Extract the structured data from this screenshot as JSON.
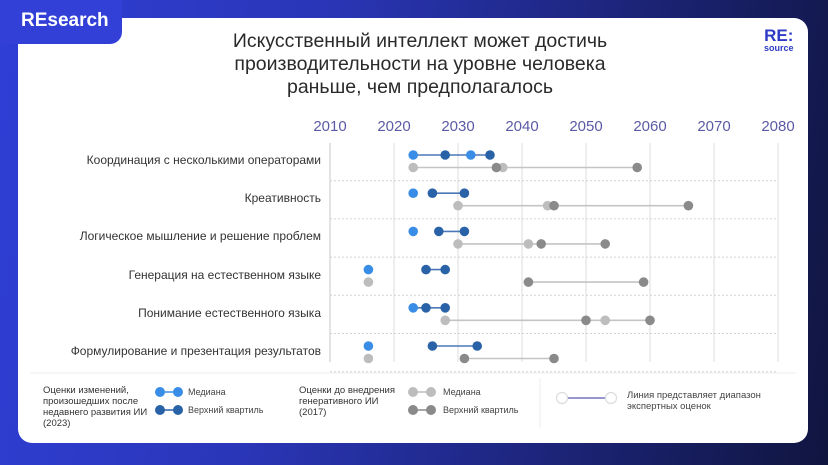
{
  "brand": {
    "tab_label": "REsearch",
    "logo_main": "RE:",
    "logo_sub": "source"
  },
  "title": {
    "line1": "Искусственный интеллект может достичь",
    "line2": "производительности на уровне человека",
    "line3": "раньше, чем предполагалось"
  },
  "colors": {
    "median_2023": "#3a8de6",
    "upper_2023": "#2a62a8",
    "median_2017": "#bdbdbd",
    "upper_2017": "#8a8a8a",
    "range_legend_line": "#5b55b0",
    "axis_labels": "#5b5aa6"
  },
  "legend": {
    "group_2023_label": "Оценки изменений, произошедших после недавнего развития ИИ (2023)",
    "group_2017_label": "Оценки до внедрения генеративного ИИ (2017)",
    "median_label": "Медиана",
    "upper_quartile_label": "Верхний квартиль",
    "median_label_2017": "Медиана",
    "upper_quartile_label_2017": "Верхний квартиль",
    "range_note": "Линия представляет диапазон экспертных оценок"
  },
  "chart_data": {
    "type": "dot-range",
    "title": "Искусственный интеллект может достичь производительности на уровне человека раньше, чем предполагалось",
    "xlabel": "",
    "ylabel": "",
    "xlim": [
      2010,
      2080
    ],
    "x_ticks": [
      "2010",
      "2020",
      "2030",
      "2040",
      "2050",
      "2060",
      "2070",
      "2080"
    ],
    "grid": true,
    "legend_position": "bottom",
    "categories": [
      "Координация с несколькими операторами",
      "Креативность",
      "Логическое мышление  и решение проблем",
      "Генерация на естественном языке",
      "Понимание естественного языка",
      "Формулирование и презентация результатов"
    ],
    "series": [
      {
        "name": "Медиана (2023)",
        "group": "2023",
        "values": [
          [
            2023,
            2032
          ],
          [
            2023
          ],
          [
            2023
          ],
          [
            2016
          ],
          [
            2023
          ],
          [
            2016
          ]
        ]
      },
      {
        "name": "Верхний квартиль (2023)",
        "group": "2023",
        "values": [
          [
            2028,
            2035
          ],
          [
            2026,
            2031
          ],
          [
            2027,
            2031
          ],
          [
            2025,
            2028
          ],
          [
            2025,
            2028
          ],
          [
            2026,
            2033
          ]
        ]
      },
      {
        "name": "Медиана (2017)",
        "group": "2017",
        "values": [
          [
            2023,
            2037
          ],
          [
            2030,
            2044
          ],
          [
            2030,
            2041
          ],
          [
            2016
          ],
          [
            2028,
            2053
          ],
          [
            2016
          ]
        ]
      },
      {
        "name": "Верхний квартиль (2017)",
        "group": "2017",
        "values": [
          [
            2036,
            2058
          ],
          [
            2045,
            2066
          ],
          [
            2043,
            2053
          ],
          [
            2041,
            2059
          ],
          [
            2050,
            2060
          ],
          [
            2031,
            2045
          ]
        ]
      }
    ],
    "rows": [
      {
        "label": "Координация с несколькими операторами",
        "y2023": {
          "median": [
            2023,
            2032
          ],
          "upper": [
            2028,
            2035
          ],
          "line": [
            2023,
            2035
          ]
        },
        "y2017": {
          "median": [
            2023,
            2037
          ],
          "upper": [
            2036,
            2058
          ],
          "line": [
            2023,
            2058
          ]
        }
      },
      {
        "label": "Креативность",
        "y2023": {
          "median": [
            2023
          ],
          "upper": [
            2026,
            2031
          ],
          "line": [
            2026,
            2031
          ]
        },
        "y2017": {
          "median": [
            2030,
            2044
          ],
          "upper": [
            2045,
            2066
          ],
          "line": [
            2030,
            2066
          ]
        }
      },
      {
        "label": "Логическое мышление  и решение проблем",
        "y2023": {
          "median": [
            2023
          ],
          "upper": [
            2027,
            2031
          ],
          "line": [
            2027,
            2031
          ]
        },
        "y2017": {
          "median": [
            2030,
            2041
          ],
          "upper": [
            2043,
            2053
          ],
          "line": [
            2030,
            2053
          ]
        }
      },
      {
        "label": "Генерация на естественном языке",
        "y2023": {
          "median": [
            2016
          ],
          "upper": [
            2025,
            2028
          ],
          "line": [
            2025,
            2028
          ]
        },
        "y2017": {
          "median": [
            2016
          ],
          "upper": [
            2041,
            2059
          ],
          "line": [
            2041,
            2059
          ]
        }
      },
      {
        "label": "Понимание естественного языка",
        "y2023": {
          "median": [
            2023
          ],
          "upper": [
            2025,
            2028
          ],
          "line": [
            2023,
            2028
          ]
        },
        "y2017": {
          "median": [
            2028,
            2053
          ],
          "upper": [
            2050,
            2060
          ],
          "line": [
            2028,
            2060
          ]
        }
      },
      {
        "label": "Формулирование и презентация результатов",
        "y2023": {
          "median": [
            2016
          ],
          "upper": [
            2026,
            2033
          ],
          "line": [
            2026,
            2033
          ]
        },
        "y2017": {
          "median": [
            2016
          ],
          "upper": [
            2031,
            2045
          ],
          "line": [
            2031,
            2045
          ]
        }
      }
    ]
  }
}
